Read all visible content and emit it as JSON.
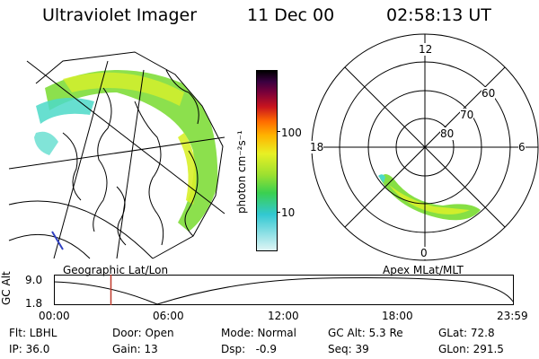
{
  "header": {
    "title": "Ultraviolet Imager",
    "date": "11 Dec 00",
    "time": "02:58:13 UT"
  },
  "colorbar": {
    "unit_label": "photon cm⁻²s⁻¹",
    "ticks": [
      "100",
      "10"
    ]
  },
  "geo_panel": {
    "label": "Geographic Lat/Lon"
  },
  "polar_panel": {
    "label": "Apex MLat/MLT",
    "mlt_labels": {
      "top": "12",
      "left": "18",
      "right": "6",
      "bottom": "0"
    },
    "lat_labels": [
      "60",
      "70",
      "80"
    ]
  },
  "timeline": {
    "axis_label": "GC Alt",
    "y_ticks": [
      "9.0",
      "1.8"
    ],
    "x_ticks": [
      "00:00",
      "06:00",
      "12:00",
      "18:00",
      "23:59"
    ],
    "current_time_fraction": 0.124
  },
  "info_rows": [
    [
      "Flt: LBHL",
      "Door: Open",
      "Mode: Normal",
      "GC Alt: 5.3 Re",
      "GLat: 72.8"
    ],
    [
      "IP: 36.0",
      "Gain: 13",
      "Dsp:   -0.9",
      "Seq: 39",
      "GLon: 291.5"
    ]
  ],
  "colors": {
    "aurora_green": "#7fdd3a",
    "aurora_yellow": "#d8f02a",
    "aurora_cyan": "#4cd9c8",
    "marker_red": "#c0392b"
  }
}
